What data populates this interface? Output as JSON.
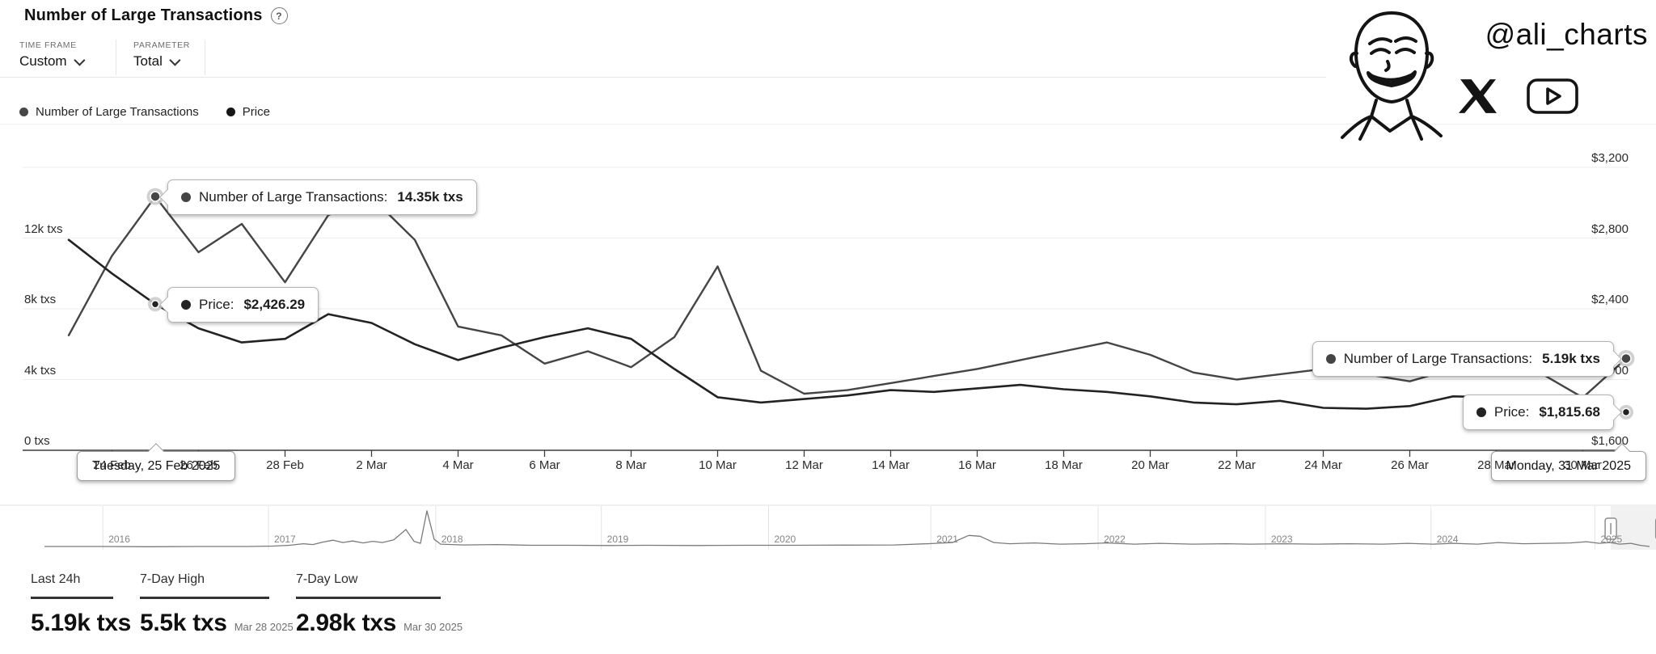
{
  "header": {
    "title": "Number of Large Transactions",
    "help_glyph": "?"
  },
  "controls": {
    "time_frame_label": "TIME FRAME",
    "time_frame_value": "Custom",
    "parameter_label": "PARAMETER",
    "parameter_value": "Total"
  },
  "legend": [
    {
      "label": "Number of Large Transactions",
      "color": "#474747"
    },
    {
      "label": "Price",
      "color": "#161616"
    }
  ],
  "branding": {
    "handle": "@ali_charts",
    "icons": [
      "avatar-sketch",
      "x-logo",
      "youtube-logo"
    ]
  },
  "chart_data": {
    "type": "line",
    "x": [
      "23 Feb",
      "24 Feb",
      "25 Feb",
      "26 Feb",
      "27 Feb",
      "28 Feb",
      "1 Mar",
      "2 Mar",
      "3 Mar",
      "4 Mar",
      "5 Mar",
      "6 Mar",
      "7 Mar",
      "8 Mar",
      "9 Mar",
      "10 Mar",
      "11 Mar",
      "12 Mar",
      "13 Mar",
      "14 Mar",
      "15 Mar",
      "16 Mar",
      "17 Mar",
      "18 Mar",
      "19 Mar",
      "20 Mar",
      "21 Mar",
      "22 Mar",
      "23 Mar",
      "24 Mar",
      "25 Mar",
      "26 Mar",
      "27 Mar",
      "28 Mar",
      "29 Mar",
      "30 Mar",
      "31 Mar"
    ],
    "series": [
      {
        "name": "Number of Large Transactions",
        "unit": "txs",
        "axis": "left",
        "color": "#454545",
        "values": [
          6500,
          11000,
          14350,
          11200,
          12800,
          9500,
          13300,
          14300,
          11900,
          7000,
          6500,
          4900,
          5600,
          4700,
          6400,
          10400,
          4500,
          3200,
          3400,
          3800,
          4200,
          4600,
          5100,
          5600,
          6100,
          5400,
          4400,
          4000,
          4300,
          4600,
          4300,
          3900,
          4600,
          5500,
          4400,
          2980,
          5190
        ]
      },
      {
        "name": "Price",
        "unit": "USD",
        "axis": "right",
        "color": "#232323",
        "values": [
          2790,
          2600,
          2426.29,
          2290,
          2210,
          2230,
          2370,
          2320,
          2200,
          2110,
          2180,
          2240,
          2290,
          2230,
          2060,
          1900,
          1870,
          1890,
          1910,
          1940,
          1930,
          1950,
          1970,
          1945,
          1930,
          1905,
          1870,
          1860,
          1880,
          1840,
          1835,
          1850,
          1905,
          1900,
          1870,
          1830,
          1815.68
        ]
      }
    ],
    "y_axis_left": {
      "min": 0,
      "max": 16000,
      "tick_labels": [
        "0 txs",
        "4k txs",
        "8k txs",
        "12k txs"
      ]
    },
    "y_axis_right": {
      "min": 1600,
      "max": 3200,
      "tick_labels": [
        "$1,600",
        "$2,000",
        "$2,400",
        "$2,800",
        "$3,200"
      ]
    },
    "x_tick_labels": [
      "24 Feb",
      "26 Feb",
      "28 Feb",
      "2 Mar",
      "4 Mar",
      "6 Mar",
      "8 Mar",
      "10 Mar",
      "12 Mar",
      "14 Mar",
      "16 Mar",
      "18 Mar",
      "20 Mar",
      "22 Mar",
      "24 Mar",
      "26 Mar",
      "28 Mar",
      "30 Mar"
    ],
    "grid": true,
    "legend_position": "top-left",
    "tooltips": [
      {
        "series": 0,
        "label": "Number of Large Transactions:",
        "value": "14.35k txs",
        "index": 2,
        "side": "left"
      },
      {
        "series": 1,
        "label": "Price:",
        "value": "$2,426.29",
        "index": 2,
        "side": "left"
      },
      {
        "series": 0,
        "label": "Number of Large Transactions:",
        "value": "5.19k txs",
        "index": 36,
        "side": "right"
      },
      {
        "series": 1,
        "label": "Price:",
        "value": "$1,815.68",
        "index": 36,
        "side": "right"
      }
    ],
    "date_tooltips": [
      {
        "text": "Tuesday, 25 Feb 2025",
        "index": 2,
        "align": "center"
      },
      {
        "text": "Monday, 31 Mar 2025",
        "index": 36,
        "align": "right"
      }
    ]
  },
  "navigator": {
    "years": [
      "2016",
      "2017",
      "2018",
      "2019",
      "2020",
      "2021",
      "2022",
      "2023",
      "2024",
      "2025"
    ],
    "year_fracs": [
      0.067,
      0.167,
      0.268,
      0.368,
      0.469,
      0.567,
      0.668,
      0.769,
      0.869,
      0.968
    ],
    "points": [
      [
        0.027,
        0.02
      ],
      [
        0.06,
        0.02
      ],
      [
        0.09,
        0.015
      ],
      [
        0.12,
        0.02
      ],
      [
        0.15,
        0.02
      ],
      [
        0.165,
        0.03
      ],
      [
        0.175,
        0.05
      ],
      [
        0.183,
        0.09
      ],
      [
        0.189,
        0.07
      ],
      [
        0.195,
        0.13
      ],
      [
        0.201,
        0.18
      ],
      [
        0.207,
        0.12
      ],
      [
        0.213,
        0.16
      ],
      [
        0.219,
        0.11
      ],
      [
        0.225,
        0.15
      ],
      [
        0.231,
        0.12
      ],
      [
        0.238,
        0.19
      ],
      [
        0.245,
        0.45
      ],
      [
        0.25,
        0.15
      ],
      [
        0.254,
        0.1
      ],
      [
        0.258,
        0.92
      ],
      [
        0.262,
        0.2
      ],
      [
        0.266,
        0.08
      ],
      [
        0.28,
        0.06
      ],
      [
        0.3,
        0.07
      ],
      [
        0.32,
        0.05
      ],
      [
        0.345,
        0.05
      ],
      [
        0.368,
        0.045
      ],
      [
        0.39,
        0.05
      ],
      [
        0.42,
        0.045
      ],
      [
        0.45,
        0.05
      ],
      [
        0.48,
        0.05
      ],
      [
        0.51,
        0.055
      ],
      [
        0.54,
        0.06
      ],
      [
        0.56,
        0.09
      ],
      [
        0.575,
        0.12
      ],
      [
        0.585,
        0.3
      ],
      [
        0.592,
        0.28
      ],
      [
        0.6,
        0.12
      ],
      [
        0.61,
        0.09
      ],
      [
        0.625,
        0.11
      ],
      [
        0.64,
        0.08
      ],
      [
        0.655,
        0.09
      ],
      [
        0.668,
        0.11
      ],
      [
        0.685,
        0.08
      ],
      [
        0.7,
        0.1
      ],
      [
        0.72,
        0.08
      ],
      [
        0.74,
        0.09
      ],
      [
        0.755,
        0.08
      ],
      [
        0.775,
        0.09
      ],
      [
        0.795,
        0.08
      ],
      [
        0.815,
        0.09
      ],
      [
        0.835,
        0.08
      ],
      [
        0.85,
        0.1
      ],
      [
        0.865,
        0.08
      ],
      [
        0.878,
        0.1
      ],
      [
        0.892,
        0.08
      ],
      [
        0.905,
        0.12
      ],
      [
        0.92,
        0.09
      ],
      [
        0.935,
        0.1
      ],
      [
        0.948,
        0.11
      ],
      [
        0.958,
        0.14
      ],
      [
        0.966,
        0.1
      ],
      [
        0.972,
        0.12
      ],
      [
        0.978,
        0.08
      ],
      [
        0.985,
        0.1
      ],
      [
        0.99,
        0.05
      ],
      [
        0.996,
        0.02
      ]
    ],
    "selected_from": 0.9727,
    "selected_to": 0.993
  },
  "stats": [
    {
      "label": "Last 24h",
      "value": "5.19k txs",
      "date": ""
    },
    {
      "label": "7-Day High",
      "value": "5.5k txs",
      "date": "Mar 28 2025"
    },
    {
      "label": "7-Day Low",
      "value": "2.98k txs",
      "date": "Mar 30 2025"
    }
  ]
}
